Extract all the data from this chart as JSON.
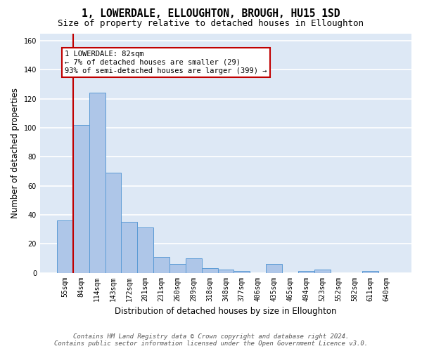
{
  "title": "1, LOWERDALE, ELLOUGHTON, BROUGH, HU15 1SD",
  "subtitle": "Size of property relative to detached houses in Elloughton",
  "xlabel": "Distribution of detached houses by size in Elloughton",
  "ylabel": "Number of detached properties",
  "categories": [
    "55sqm",
    "84sqm",
    "114sqm",
    "143sqm",
    "172sqm",
    "201sqm",
    "231sqm",
    "260sqm",
    "289sqm",
    "318sqm",
    "348sqm",
    "377sqm",
    "406sqm",
    "435sqm",
    "465sqm",
    "494sqm",
    "523sqm",
    "552sqm",
    "582sqm",
    "611sqm",
    "640sqm"
  ],
  "values": [
    36,
    102,
    124,
    69,
    35,
    31,
    11,
    6,
    10,
    3,
    2,
    1,
    0,
    6,
    0,
    1,
    2,
    0,
    0,
    1,
    0
  ],
  "bar_color": "#aec6e8",
  "bar_edge_color": "#5b9bd5",
  "vline_color": "#c00000",
  "vline_x_index": 0.5,
  "annotation_text": "1 LOWERDALE: 82sqm\n← 7% of detached houses are smaller (29)\n93% of semi-detached houses are larger (399) →",
  "annotation_box_color": "white",
  "annotation_box_edge": "#c00000",
  "ylim": [
    0,
    165
  ],
  "yticks": [
    0,
    20,
    40,
    60,
    80,
    100,
    120,
    140,
    160
  ],
  "background_color": "#dde8f5",
  "grid_color": "white",
  "footer_line1": "Contains HM Land Registry data © Crown copyright and database right 2024.",
  "footer_line2": "Contains public sector information licensed under the Open Government Licence v3.0.",
  "title_fontsize": 10.5,
  "subtitle_fontsize": 9,
  "xlabel_fontsize": 8.5,
  "ylabel_fontsize": 8.5,
  "tick_fontsize": 7,
  "footer_fontsize": 6.5
}
